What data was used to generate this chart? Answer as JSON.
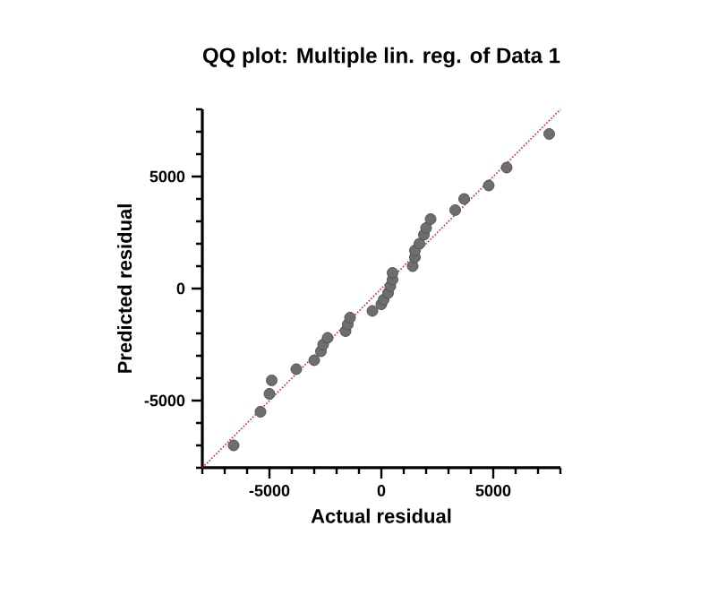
{
  "chart_data": {
    "type": "scatter",
    "title": "QQ plot: Multiple lin. reg. of Data 1",
    "xlabel": "Actual residual",
    "ylabel": "Predicted residual",
    "xlim": [
      -8000,
      8000
    ],
    "ylim": [
      -8000,
      8000
    ],
    "xticks": [
      {
        "value": -8000,
        "label": null
      },
      {
        "value": -7000,
        "label": null
      },
      {
        "value": -6000,
        "label": null
      },
      -5000,
      {
        "value": -4000,
        "label": null
      },
      {
        "value": -3000,
        "label": null
      },
      {
        "value": -2000,
        "label": null
      },
      {
        "value": -1000,
        "label": null
      },
      0,
      {
        "value": 1000,
        "label": null
      },
      {
        "value": 2000,
        "label": null
      },
      {
        "value": 3000,
        "label": null
      },
      {
        "value": 4000,
        "label": null
      },
      5000,
      {
        "value": 6000,
        "label": null
      },
      {
        "value": 7000,
        "label": null
      },
      {
        "value": 8000,
        "label": null
      }
    ],
    "yticks": [
      {
        "value": -8000,
        "label": null
      },
      {
        "value": -7000,
        "label": null
      },
      {
        "value": -6000,
        "label": null
      },
      -5000,
      {
        "value": -4000,
        "label": null
      },
      {
        "value": -3000,
        "label": null
      },
      {
        "value": -2000,
        "label": null
      },
      {
        "value": -1000,
        "label": null
      },
      0,
      {
        "value": 1000,
        "label": null
      },
      {
        "value": 2000,
        "label": null
      },
      {
        "value": 3000,
        "label": null
      },
      {
        "value": 4000,
        "label": null
      },
      5000,
      {
        "value": 6000,
        "label": null
      },
      {
        "value": 7000,
        "label": null
      },
      {
        "value": 8000,
        "label": null
      }
    ],
    "grid": false,
    "series": [
      {
        "type": "line",
        "color": "#e02020",
        "line_style": "dotted",
        "marker": "none",
        "x": [
          -8000,
          8000
        ],
        "values": [
          -8000,
          8000
        ]
      },
      {
        "color": "#6e6e6e",
        "marker": "circle",
        "x": [
          -6600,
          -5400,
          -5000,
          -4900,
          -3800,
          -3000,
          -2700,
          -2600,
          -2400,
          -1600,
          -1500,
          -1400,
          -400,
          0,
          100,
          300,
          400,
          500,
          500,
          1400,
          1500,
          1500,
          1700,
          1900,
          2000,
          2200,
          3300,
          3700,
          4800,
          5600,
          7500
        ],
        "values": [
          -7000,
          -5500,
          -4700,
          -4100,
          -3600,
          -3200,
          -2800,
          -2500,
          -2200,
          -1900,
          -1600,
          -1300,
          -1000,
          -700,
          -500,
          -200,
          100,
          400,
          700,
          1000,
          1400,
          1700,
          2000,
          2400,
          2700,
          3100,
          3500,
          4000,
          4600,
          5400,
          6900
        ]
      }
    ]
  }
}
